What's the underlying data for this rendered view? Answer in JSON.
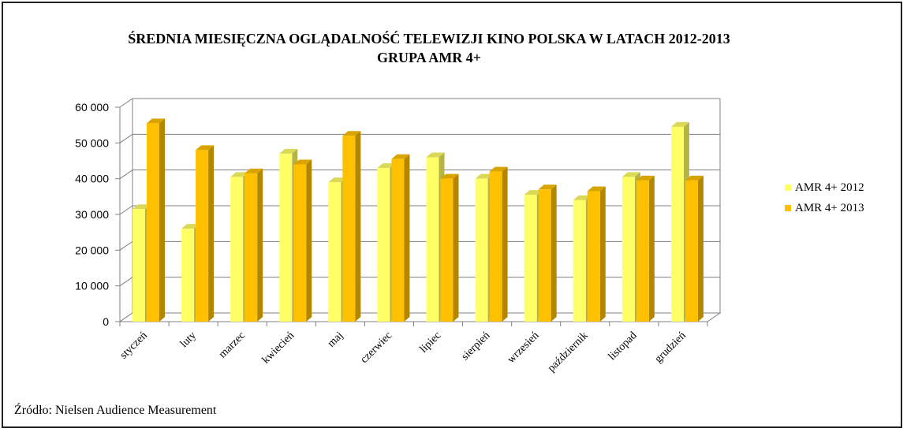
{
  "title_line1": "ŚREDNIA MIESIĘCZNA  OGLĄDALNOŚĆ TELEWIZJI  KINO POLSKA W LATACH 2012-2013",
  "title_line2": "GRUPA  AMR 4+",
  "source": "Źródło: Nielsen Audience Measurement",
  "chart_data": {
    "type": "bar",
    "categories": [
      "styczeń",
      "luty",
      "marzec",
      "kwiecień",
      "maj",
      "czerwiec",
      "lipiec",
      "sierpień",
      "wrzesień",
      "październik",
      "listopad",
      "grudzień"
    ],
    "series": [
      {
        "name": "AMR 4+ 2012",
        "color": "#ffff66",
        "values": [
          31500,
          26000,
          40500,
          47000,
          39000,
          43000,
          46000,
          40000,
          35500,
          34000,
          40500,
          54500
        ]
      },
      {
        "name": "AMR 4+ 2013",
        "color": "#ffc000",
        "values": [
          55500,
          48000,
          41500,
          44000,
          52000,
          45500,
          40000,
          42000,
          37000,
          36500,
          39500,
          39500
        ]
      }
    ],
    "ylim": [
      0,
      60000
    ],
    "yticks": [
      "0",
      "10 000",
      "20 000",
      "30 000",
      "40 000",
      "50 000",
      "60 000"
    ],
    "grid": true,
    "legend_position": "right"
  }
}
